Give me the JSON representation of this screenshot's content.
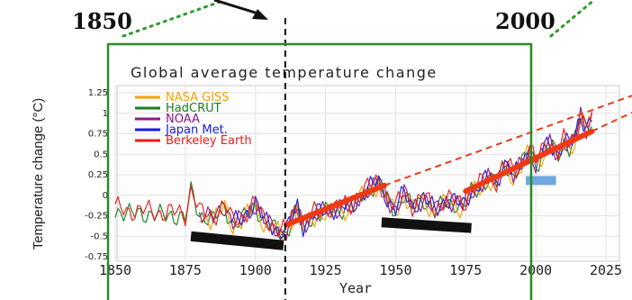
{
  "annotations": {
    "start_year_label": "1850",
    "end_year_label": "2000"
  },
  "chart_data": {
    "type": "line",
    "title": "Global average temperature change",
    "xlabel": "Year",
    "ylabel": "Temperature change (°C)",
    "xlim": [
      1850,
      2025
    ],
    "ylim": [
      -0.75,
      1.25
    ],
    "x_ticks": [
      "1850",
      "1875",
      "1900",
      "1925",
      "1950",
      "1975",
      "2000",
      "2025"
    ],
    "y_ticks": [
      "1.25",
      "1",
      "0.75",
      "0.5",
      "0.25",
      "0",
      "-0.25",
      "-0.5",
      "-0.75"
    ],
    "y_tick_values": [
      1.25,
      1,
      0.75,
      0.5,
      0.25,
      0,
      -0.25,
      -0.5,
      -0.75
    ],
    "x_tick_values": [
      1850,
      1875,
      1900,
      1925,
      1950,
      1975,
      2000,
      2025
    ],
    "grid": true,
    "legend_position": "top-left",
    "series": [
      {
        "name": "NASA GISS",
        "color": "#f5a300",
        "start": 1880
      },
      {
        "name": "HadCRUT",
        "color": "#1e7d1e",
        "start": 1850
      },
      {
        "name": "NOAA",
        "color": "#8a1a8a",
        "start": 1880
      },
      {
        "name": "Japan Met.",
        "color": "#1a1ae0",
        "start": 1891
      },
      {
        "name": "Berkeley Earth",
        "color": "#e81c1c",
        "start": 1850
      }
    ],
    "anomaly_trend": [
      [
        1850,
        -0.17
      ],
      [
        1855,
        -0.22
      ],
      [
        1860,
        -0.2
      ],
      [
        1865,
        -0.24
      ],
      [
        1870,
        -0.22
      ],
      [
        1875,
        -0.27
      ],
      [
        1877,
        0.05
      ],
      [
        1878,
        0.0
      ],
      [
        1880,
        -0.22
      ],
      [
        1885,
        -0.29
      ],
      [
        1889,
        -0.12
      ],
      [
        1892,
        -0.35
      ],
      [
        1895,
        -0.3
      ],
      [
        1900,
        -0.1
      ],
      [
        1903,
        -0.32
      ],
      [
        1905,
        -0.36
      ],
      [
        1909,
        -0.45
      ],
      [
        1911,
        -0.44
      ],
      [
        1915,
        -0.15
      ],
      [
        1917,
        -0.38
      ],
      [
        1920,
        -0.25
      ],
      [
        1925,
        -0.2
      ],
      [
        1930,
        -0.15
      ],
      [
        1935,
        -0.15
      ],
      [
        1938,
        0.02
      ],
      [
        1941,
        0.1
      ],
      [
        1944,
        0.15
      ],
      [
        1947,
        -0.05
      ],
      [
        1950,
        -0.17
      ],
      [
        1953,
        0.02
      ],
      [
        1956,
        -0.15
      ],
      [
        1960,
        -0.03
      ],
      [
        1964,
        -0.2
      ],
      [
        1968,
        -0.06
      ],
      [
        1971,
        -0.08
      ],
      [
        1974,
        -0.15
      ],
      [
        1977,
        0.05
      ],
      [
        1980,
        0.12
      ],
      [
        1983,
        0.2
      ],
      [
        1986,
        0.15
      ],
      [
        1988,
        0.33
      ],
      [
        1990,
        0.38
      ],
      [
        1992,
        0.22
      ],
      [
        1995,
        0.38
      ],
      [
        1998,
        0.57
      ],
      [
        2000,
        0.38
      ],
      [
        2003,
        0.56
      ],
      [
        2005,
        0.62
      ],
      [
        2008,
        0.5
      ],
      [
        2010,
        0.66
      ],
      [
        2012,
        0.6
      ],
      [
        2014,
        0.68
      ],
      [
        2016,
        0.98
      ],
      [
        2018,
        0.82
      ],
      [
        2020,
        0.95
      ]
    ],
    "red_trend_segments": [
      {
        "x": [
          1911,
          1946
        ],
        "y": [
          -0.36,
          0.12
        ]
      },
      {
        "x": [
          1975,
          2020
        ],
        "y": [
          0.05,
          0.78
        ]
      }
    ],
    "red_dashed_extensions": [
      {
        "x": [
          1946,
          2025
        ],
        "y": [
          0.12,
          1.1
        ]
      },
      {
        "x": [
          2020,
          2025
        ],
        "y": [
          0.78,
          0.86
        ]
      }
    ],
    "black_bars": [
      {
        "x": [
          1877,
          1910
        ],
        "y": [
          -0.5,
          -0.61
        ]
      },
      {
        "x": [
          1945,
          1977
        ],
        "y": [
          -0.33,
          -0.4
        ]
      }
    ],
    "blue_marker": {
      "x": [
        1999,
        2004
      ],
      "y": [
        0.18,
        0.18
      ]
    },
    "vertical_markers": [
      {
        "label_ref": "1850",
        "x": 1850,
        "color": "#2a8a2a",
        "style": "solid"
      },
      {
        "label_ref": "2000",
        "x": 2000,
        "color": "#2a8a2a",
        "style": "solid"
      },
      {
        "x": 1910,
        "color": "#111111",
        "style": "dashed"
      }
    ]
  }
}
